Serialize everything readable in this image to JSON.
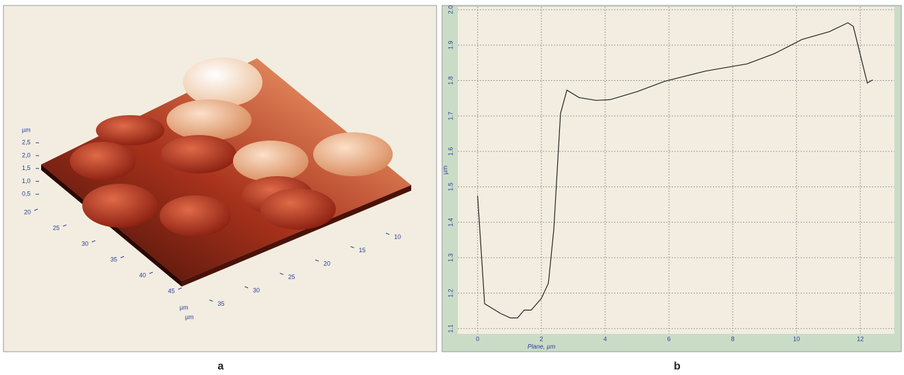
{
  "chart_data": [
    {
      "type": "surface3d",
      "panel_label": "a",
      "z_label": "µm",
      "zticks": [
        {
          "value": 0.5,
          "label": "0,5"
        },
        {
          "value": 1,
          "label": "1,0"
        },
        {
          "value": 1.5,
          "label": "1,5"
        },
        {
          "value": 2,
          "label": "2,0"
        },
        {
          "value": 2.5,
          "label": "2,5"
        }
      ],
      "x_label": "µm",
      "xticks": [
        20,
        25,
        30,
        35,
        40,
        45
      ],
      "y_label": "µm",
      "yticks": [
        10,
        15,
        20,
        25,
        30,
        35
      ]
    },
    {
      "type": "line",
      "panel_label": "b",
      "xlabel": "Plane, µm",
      "ylabel": "µm",
      "x": [
        0,
        0.22,
        0.71,
        1.03,
        1.25,
        1.46,
        1.68,
        2.0,
        2.22,
        2.39,
        2.6,
        2.8,
        3.18,
        3.72,
        4.15,
        5.01,
        5.87,
        7.16,
        8.45,
        9.31,
        10.17,
        11.03,
        11.61,
        11.78,
        12.22,
        12.39
      ],
      "values": [
        1.475,
        1.17,
        1.143,
        1.13,
        1.13,
        1.152,
        1.152,
        1.185,
        1.228,
        1.38,
        1.707,
        1.773,
        1.752,
        1.744,
        1.746,
        1.769,
        1.798,
        1.827,
        1.847,
        1.876,
        1.916,
        1.938,
        1.963,
        1.953,
        1.793,
        1.802
      ],
      "color": "#222222",
      "xlim": [
        -0.62,
        13.07
      ],
      "ylim": [
        1.085,
        2.008
      ],
      "xticks": [
        0,
        2,
        4,
        6,
        8,
        10,
        12
      ],
      "yticks": [
        1.1,
        1.2,
        1.3,
        1.4,
        1.5,
        1.6,
        1.7,
        1.8,
        1.9,
        {
          "value": 2,
          "label": "2.0"
        }
      ],
      "grid": true
    }
  ]
}
